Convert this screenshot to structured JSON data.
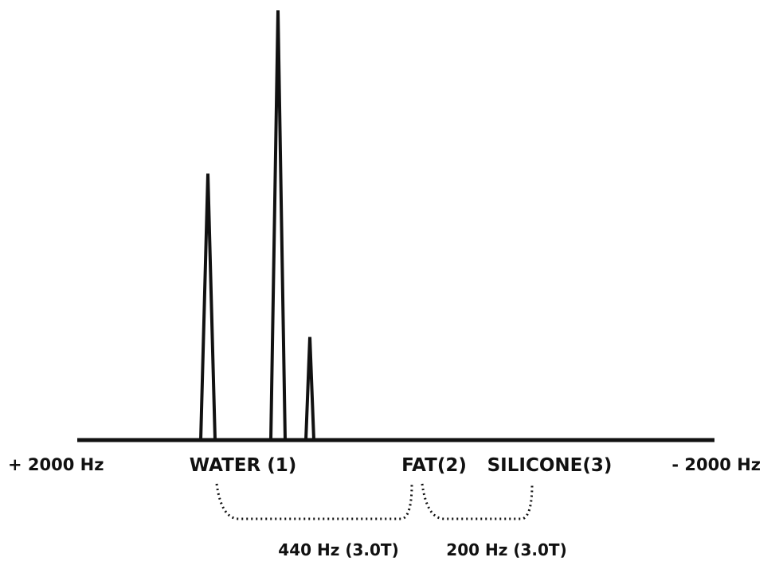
{
  "chart_data": {
    "type": "line",
    "x_axis": {
      "left_label": "+ 2000 Hz",
      "right_label": "- 2000 Hz",
      "range": [
        2000,
        -2000
      ]
    },
    "peaks": [
      {
        "label": "WATER (1)",
        "position": 1180,
        "height": 0.62,
        "width": 90
      },
      {
        "label": "FAT(2)",
        "position": 740,
        "height": 1.0,
        "width": 90
      },
      {
        "label": "SILICONE(3)",
        "position": 540,
        "height": 0.24,
        "width": 50
      }
    ],
    "annotations": [
      {
        "label": "440 Hz (3.0T)",
        "from": "WATER (1)",
        "to": "FAT(2)"
      },
      {
        "label": "200 Hz (3.0T)",
        "from": "FAT(2)",
        "to": "SILICONE(3)"
      }
    ],
    "colors": {
      "stroke": "#111111",
      "background": "#ffffff"
    }
  }
}
